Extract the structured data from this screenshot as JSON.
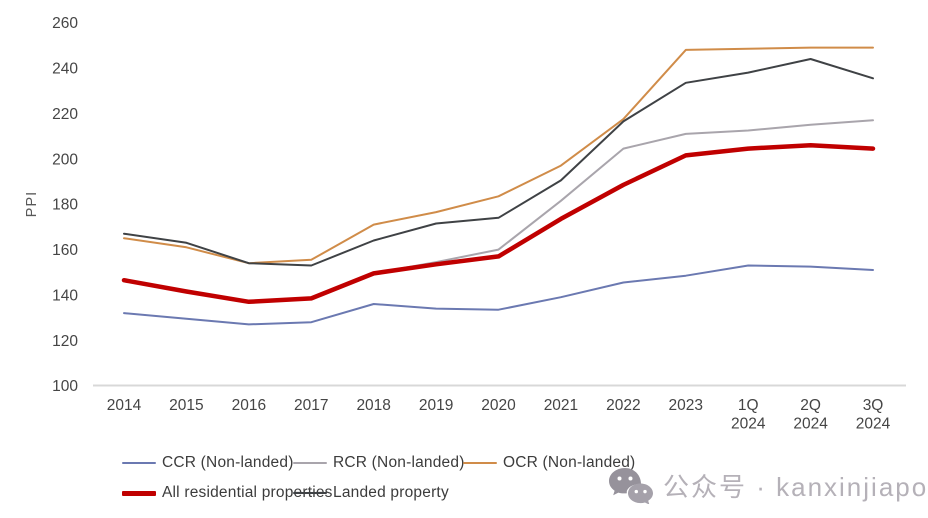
{
  "chart_data": {
    "type": "line",
    "title": "",
    "xlabel": "",
    "ylabel": "PPI",
    "ylim": [
      100,
      260
    ],
    "ytick_step": 20,
    "grid": false,
    "legend_position": "bottom",
    "categories": [
      "2014",
      "2015",
      "2016",
      "2017",
      "2018",
      "2019",
      "2020",
      "2021",
      "2022",
      "2023",
      "1Q\n2024",
      "2Q\n2024",
      "3Q\n2024"
    ],
    "series": [
      {
        "name": "CCR (Non-landed)",
        "color": "#6B79B1",
        "width": 2,
        "values": [
          132,
          129.5,
          127,
          128,
          136,
          134,
          133.5,
          139,
          145.5,
          148.5,
          153,
          152.5,
          151
        ]
      },
      {
        "name": "RCR (Non-landed)",
        "color": "#A9A5AC",
        "width": 2,
        "values": [
          146,
          141.5,
          137,
          138.5,
          149.5,
          154.5,
          160,
          181.5,
          204.5,
          211,
          212.5,
          215,
          217
        ]
      },
      {
        "name": "OCR (Non-landed)",
        "color": "#D08C49",
        "width": 2,
        "values": [
          165,
          161,
          154,
          155.5,
          171,
          176.5,
          183.5,
          197,
          217.5,
          248,
          248.5,
          249,
          249
        ]
      },
      {
        "name": "All residential properties",
        "color": "#C00000",
        "width": 4.5,
        "values": [
          146.5,
          141.5,
          137,
          138.5,
          149.5,
          153.5,
          157,
          173.5,
          188.5,
          201.5,
          204.5,
          206,
          204.5
        ]
      },
      {
        "name": "Landed property",
        "color": "#3F4245",
        "width": 2,
        "values": [
          167,
          163,
          154,
          153,
          164,
          171.5,
          174,
          190.5,
          216.5,
          233.5,
          238,
          244,
          235.5
        ]
      }
    ],
    "axis": {
      "tick_label_color": "#454545",
      "axis_line_color": "#d8d8d8",
      "ylabel_color": "#595959"
    }
  },
  "watermark": {
    "icon": "wechat-icon",
    "text": "公众号 · kanxinjiapo"
  }
}
